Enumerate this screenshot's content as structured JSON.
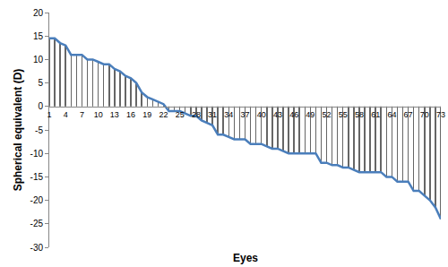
{
  "chart_data": {
    "type": "line",
    "x_label": "Eyes",
    "y_label": "Spherical equivalent (D)",
    "x": [
      1,
      2,
      3,
      4,
      5,
      6,
      7,
      8,
      9,
      10,
      11,
      12,
      13,
      14,
      15,
      16,
      17,
      18,
      19,
      20,
      21,
      22,
      23,
      24,
      25,
      26,
      27,
      28,
      29,
      30,
      31,
      32,
      33,
      34,
      35,
      36,
      37,
      38,
      39,
      40,
      41,
      42,
      43,
      44,
      45,
      46,
      47,
      48,
      49,
      50,
      51,
      52,
      53,
      54,
      55,
      56,
      57,
      58,
      59,
      60,
      61,
      62,
      63,
      64,
      65,
      66,
      67,
      68,
      69,
      70,
      71,
      72,
      73
    ],
    "values": [
      14.5,
      14.5,
      13.5,
      13,
      11,
      11,
      11,
      10,
      10,
      9.5,
      9,
      9,
      8,
      7.5,
      6.5,
      6,
      5,
      3,
      2,
      1.5,
      1,
      0.5,
      -1,
      -1,
      -1,
      -1.5,
      -2,
      -2,
      -3,
      -3.5,
      -4,
      -6,
      -6,
      -6.5,
      -7,
      -7,
      -7,
      -8,
      -8,
      -8,
      -8.5,
      -9,
      -9,
      -9.5,
      -10,
      -10,
      -10,
      -10,
      -10,
      -10,
      -12,
      -12,
      -12.5,
      -12.5,
      -13,
      -13,
      -13.5,
      -14,
      -14,
      -14,
      -14,
      -14,
      -15,
      -15,
      -16,
      -16,
      -16,
      -18,
      -18,
      -19,
      -20,
      -21.5,
      -24
    ],
    "color": "#4a7ebb",
    "xlim": [
      1,
      73
    ],
    "xticks": [
      1,
      4,
      7,
      10,
      13,
      16,
      19,
      22,
      25,
      28,
      31,
      34,
      37,
      40,
      43,
      46,
      49,
      52,
      55,
      58,
      61,
      64,
      67,
      70,
      73
    ],
    "ylim": [
      -30,
      20
    ],
    "yticks": [
      -30,
      -25,
      -20,
      -15,
      -10,
      -5,
      0,
      5,
      10,
      15,
      20
    ],
    "grid": false
  }
}
